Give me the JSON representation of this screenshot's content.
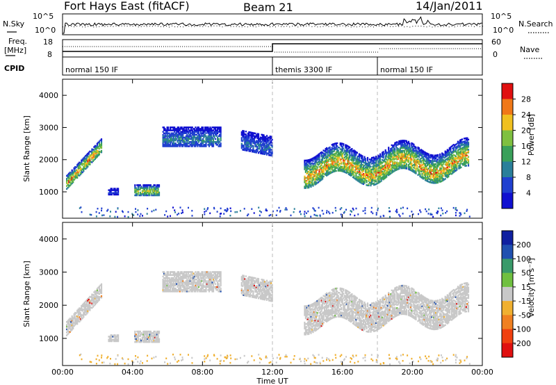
{
  "header": {
    "station": "Fort Hays East (fitACF)",
    "beam": "Beam 21",
    "date": "14/Jan/2011"
  },
  "panels_top": {
    "nsky_label": "N.Sky",
    "nsearch_label": "N.Search",
    "noise_ticks": [
      "10^5",
      "10^0"
    ],
    "freq_label": "Freq.",
    "freq_unit": "[MHz]",
    "freq_ticks": [
      "18",
      "8"
    ],
    "nave_label": "Nave",
    "nave_ticks": [
      "60",
      "0"
    ],
    "cpid_label": "CPID",
    "cpid_segments": [
      {
        "label": "normal 150 IF",
        "start_hour": 0
      },
      {
        "label": "themis 3300 IF",
        "start_hour": 12
      },
      {
        "label": "normal 150 IF",
        "start_hour": 18
      }
    ]
  },
  "chart_data": [
    {
      "type": "heatmap",
      "title": "",
      "xlabel": "",
      "ylabel": "Slant Range [km]",
      "xlim_hours": [
        0,
        24
      ],
      "ylim": [
        180,
        4500
      ],
      "yticks": [
        1000,
        2000,
        3000,
        4000
      ],
      "colorbar_label": "Power [dB]",
      "colorbar_ticks": [
        "28",
        "24",
        "20",
        "16",
        "12",
        "8",
        "4"
      ],
      "colorbar_range": [
        0,
        30
      ],
      "colors": [
        "#1010d0",
        "#2040d0",
        "#2a7f9a",
        "#3aa05a",
        "#7fc040",
        "#f0c020",
        "#f07818",
        "#e01010"
      ],
      "echo_regions": [
        {
          "x0": 0.2,
          "x1": 2.2,
          "y_center_start": 1300,
          "y_center_end": 2450,
          "width": 450,
          "peak_power": 27
        },
        {
          "x0": 2.6,
          "x1": 3.2,
          "y_center_start": 1000,
          "y_center_end": 1000,
          "width": 200,
          "peak_power": 6
        },
        {
          "x0": 4.1,
          "x1": 5.5,
          "y_center_start": 1050,
          "y_center_end": 1050,
          "width": 350,
          "peak_power": 22
        },
        {
          "x0": 5.7,
          "x1": 9.0,
          "y_center_start": 2700,
          "y_center_end": 2700,
          "width": 600,
          "peak_power": 12
        },
        {
          "x0": 10.2,
          "x1": 12.0,
          "y_center_start": 2600,
          "y_center_end": 2400,
          "width": 600,
          "peak_power": 10
        },
        {
          "x0": 13.8,
          "x1": 23.2,
          "y_center_start": 1800,
          "y_center_end": 2000,
          "width": 900,
          "peak_power": 26
        }
      ]
    },
    {
      "type": "heatmap",
      "title": "",
      "xlabel": "Time UT",
      "ylabel": "Slant Range [km]",
      "xlim_hours": [
        0,
        24
      ],
      "ylim": [
        180,
        4500
      ],
      "xticks": [
        "00:00",
        "04:00",
        "08:00",
        "12:00",
        "16:00",
        "20:00",
        "00:00"
      ],
      "yticks": [
        1000,
        2000,
        3000,
        4000
      ],
      "colorbar_label": "Velocity [m s⁻¹]",
      "colorbar_ticks": [
        "200",
        "100",
        "50",
        "15",
        "-15",
        "-50",
        "-100",
        "-200"
      ],
      "colorbar_range": [
        -250,
        250
      ],
      "colors": [
        "#e01010",
        "#f04010",
        "#f08020",
        "#f0b030",
        "#c8c8c8",
        "#70c040",
        "#3a9a6a",
        "#2050b0",
        "#1020a0"
      ],
      "echo_regions": "same as power panel; ground scatter shown grey"
    }
  ]
}
